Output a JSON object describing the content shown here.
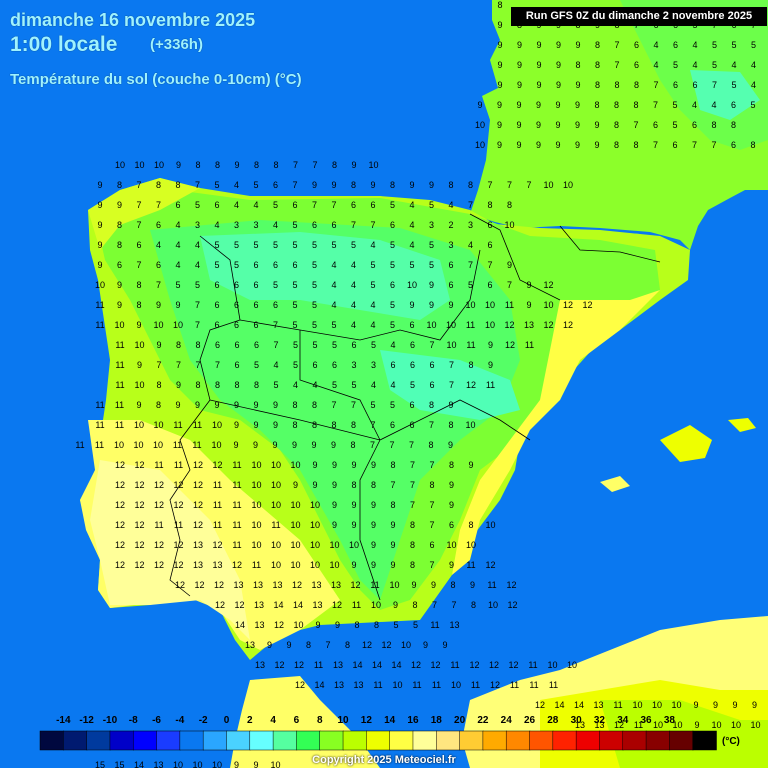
{
  "title": {
    "date": "dimanche 16 novembre 2025",
    "time": "1:00 locale",
    "offset": "(+336h)",
    "parameter": "Température du sol (couche 0-10cm) (°C)",
    "run": "Run GFS 0Z du dimanche 2 novembre 2025"
  },
  "legend": {
    "ticks": [
      "-14",
      "-12",
      "-10",
      "-8",
      "-6",
      "-4",
      "-2",
      "0",
      "2",
      "4",
      "6",
      "8",
      "10",
      "12",
      "14",
      "16",
      "18",
      "20",
      "22",
      "24",
      "26",
      "28",
      "30",
      "32",
      "34",
      "36",
      "38"
    ],
    "unit": "(°C)",
    "colors": [
      "#00083f",
      "#001a70",
      "#003a9e",
      "#0000c8",
      "#0000ff",
      "#1a3cff",
      "#0a78f0",
      "#2aa6ff",
      "#4ad2ff",
      "#66ffff",
      "#55ffa0",
      "#33ff55",
      "#88ff22",
      "#bbff00",
      "#eeff00",
      "#ffff44",
      "#ffff99",
      "#ffe680",
      "#ffcc33",
      "#ffaa00",
      "#ff8800",
      "#ff5500",
      "#ff2200",
      "#ee0000",
      "#cc0000",
      "#aa0000",
      "#880000",
      "#660000",
      "#000000"
    ]
  },
  "copyright": "Copyright 2025 Meteociel.fr",
  "colors": {
    "sea": "#0a78f0",
    "title_text": "#9ff2ff"
  },
  "temperature_grid": {
    "row_labels": [
      "8",
      "9 8 9 9 8 9 8 7 6 6 5 7 6 7",
      "9 9 9 9 9 8 7 6 4 6 4 5 5 5",
      "9 9 9 9 8 8 7 6 4 5 4 5 4 4",
      "9 9 9 9 9 8 8 8 7 6 6 7 5 4 3 3 6",
      "9 9 9 9 9 9 8 8 8 7 5 4 4 6 5 5",
      "10 9 9 9 9 9 9 8 7 6 5 6 8 8",
      "10 9 9 9 9 9 9 8 8 7 6 7 7 6 8",
      "10 10 10 9 8 8 9 8 8 7 7 8 9 10",
      "9 8 7 8 8 7 5 4 5 6 7 9 9 8 9 8 9 9 8 8 7 7 7 10 10",
      "9 9 7 7 6 5 6 4 4 5 6 7 7 6 6 5 4 5 4 7 8 8",
      "9 8 7 6 4 3 4 3 3 4 5 6 6 7 7 6 4 3 2 3 6 10",
      "9 8 6 4 4 4 5 5 5 5 5 5 5 5 4 5 4 5 3 4 6",
      "9 6 7 6 4 4 5 5 6 6 6 5 4 4 5 5 5 5 6 7 7 9",
      "10 9 8 7 5 5 6 6 6 5 5 5 4 4 5 6 10 9 6 5 6 7 9 12",
      "11 9 8 9 9 7 6 6 6 6 5 5 4 4 4 5 9 9 9 10 10 11 9 10 12 12",
      "11 10 9 10 10 7 6 6 6 7 5 5 5 4 4 5 6 10 10 11 10 12 13 12 12",
      "11 10 9 8 8 6 6 6 7 5 5 5 6 5 4 6 7 10 11 9 12 11",
      "11 9 7 7 7 7 6 5 4 5 6 6 3 3 6 6 6 7 8 9",
      "11 10 8 9 8 8 8 8 5 4 4 5 5 4 4 5 6 7 12 11",
      "11 11 9 8 9 9 9 9 9 9 8 8 7 7 5 5 6 8 9",
      "11 11 10 10 11 11 10 9 9 9 8 8 8 8 7 6 6 7 8 10",
      "11 11 10 10 10 11 11 10 9 9 9 9 9 9 8 7 7 7 8 9",
      "12 12 11 11 12 12 11 10 10 10 9 9 9 9 8 7 7 8 9",
      "12 12 12 12 12 11 11 10 10 9 9 9 8 8 7 7 8 9",
      "12 12 12 12 12 11 11 10 10 10 10 9 9 9 8 7 7 9",
      "12 12 11 11 12 11 11 10 11 10 10 9 9 9 9 8 7 6 8 10",
      "12 12 12 12 13 12 11 10 10 10 10 10 10 9 9 8 6 10 10",
      "12 12 12 12 13 13 12 11 10 10 10 10 9 9 9 8 7 9 11 12",
      "12 12 12 13 13 13 12 13 13 12 11 10 9 9 8 9 11 12",
      "12 12 13 14 14 13 12 11 10 9 8 7 7 8 10 12",
      "14 13 12 10 9 9 8 8 5 5 11 13",
      "13 9 9 8 7 8 12 12 10 9 9",
      "13 12 12 11 13 14 14 14 12 12 11 12 12 12 11 10 10",
      "12 14 13 13 11 10 11 11 10 11 12 11 11 11",
      "12 14 14 13 11 10 10 10 9 9 9 9 9",
      "13 13 12 11 10 10 9 10 10 10",
      "12 13 11 10 9 9 8 8 8",
      "15 15 14 13 10 10 10 9 9 10"
    ]
  }
}
